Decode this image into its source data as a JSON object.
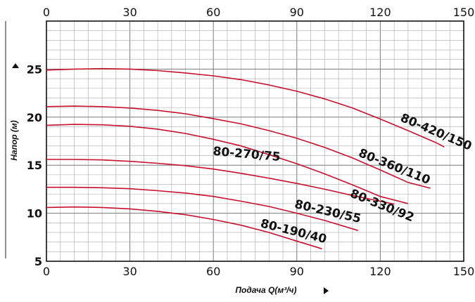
{
  "chart_data": {
    "type": "line",
    "title": "",
    "xlabel": "Подача Q(м³/ч)",
    "ylabel": "Напор (м)",
    "xlim": [
      0,
      150
    ],
    "ylim": [
      5,
      30
    ],
    "x_ticks": [
      0,
      30,
      60,
      90,
      120,
      150
    ],
    "x_tick_labels": [
      "0",
      "30",
      "60",
      "90",
      "120",
      "150"
    ],
    "y_ticks": [
      5,
      10,
      15,
      20,
      25
    ],
    "y_tick_labels": [
      "5",
      "10",
      "15",
      "20",
      "25"
    ],
    "x_ticks_top": true,
    "grid": true,
    "line_color": "#c8102e",
    "series": [
      {
        "name": "80-420/150",
        "x": [
          0,
          10,
          20,
          30,
          40,
          50,
          60,
          70,
          80,
          90,
          100,
          110,
          120,
          130,
          140,
          143
        ],
        "y": [
          24.9,
          25.0,
          25.05,
          25.0,
          24.85,
          24.6,
          24.3,
          23.9,
          23.35,
          22.7,
          21.9,
          20.95,
          19.8,
          18.6,
          17.35,
          16.9
        ]
      },
      {
        "name": "80-360/110",
        "x": [
          0,
          10,
          20,
          30,
          40,
          50,
          60,
          70,
          80,
          90,
          100,
          110,
          120,
          130,
          138
        ],
        "y": [
          21.1,
          21.15,
          21.1,
          20.95,
          20.7,
          20.35,
          19.85,
          19.3,
          18.6,
          17.8,
          16.85,
          15.75,
          14.5,
          13.2,
          12.6
        ]
      },
      {
        "name": "80-330/92",
        "x": [
          0,
          10,
          20,
          30,
          40,
          50,
          60,
          70,
          80,
          90,
          100,
          110,
          120,
          130
        ],
        "y": [
          19.15,
          19.25,
          19.2,
          19.05,
          18.75,
          18.3,
          17.7,
          17.0,
          16.1,
          15.15,
          14.1,
          12.95,
          11.75,
          11.0
        ]
      },
      {
        "name": "80-270/75",
        "x": [
          0,
          10,
          20,
          30,
          40,
          50,
          60,
          70,
          80,
          90,
          100,
          110,
          120,
          125
        ],
        "y": [
          15.6,
          15.6,
          15.55,
          15.4,
          15.2,
          14.95,
          14.6,
          14.15,
          13.65,
          13.1,
          12.5,
          11.85,
          11.25,
          10.95
        ]
      },
      {
        "name": "80-230/55",
        "x": [
          0,
          10,
          20,
          30,
          40,
          50,
          60,
          70,
          80,
          90,
          100,
          112
        ],
        "y": [
          12.7,
          12.7,
          12.65,
          12.55,
          12.35,
          12.1,
          11.75,
          11.25,
          10.7,
          10.0,
          9.25,
          8.2
        ]
      },
      {
        "name": "80-190/40",
        "x": [
          0,
          10,
          20,
          30,
          40,
          50,
          60,
          70,
          80,
          90,
          99
        ],
        "y": [
          10.6,
          10.65,
          10.6,
          10.45,
          10.2,
          9.85,
          9.35,
          8.75,
          8.0,
          7.1,
          6.3
        ]
      }
    ]
  }
}
